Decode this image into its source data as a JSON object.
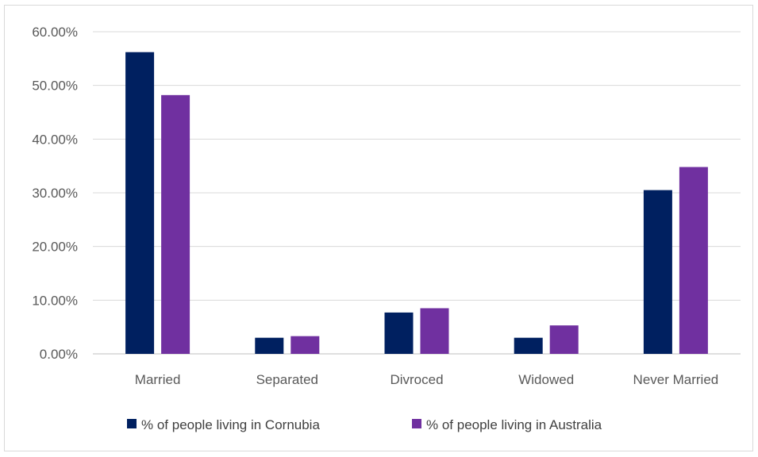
{
  "chart_data": {
    "type": "bar",
    "categories": [
      "Married",
      "Separated",
      "Divroced",
      "Widowed",
      "Never Married"
    ],
    "series": [
      {
        "name": "% of people living in Cornubia",
        "color": "#002060",
        "values": [
          56.2,
          3.0,
          7.7,
          3.0,
          30.5
        ]
      },
      {
        "name": "% of people living in Australia",
        "color": "#7030a0",
        "values": [
          48.2,
          3.3,
          8.5,
          5.3,
          34.8
        ]
      }
    ],
    "title": "",
    "xlabel": "",
    "ylabel": "",
    "ylim": [
      0,
      60
    ],
    "yticks": [
      "0.00%",
      "10.00%",
      "20.00%",
      "30.00%",
      "40.00%",
      "50.00%",
      "60.00%"
    ],
    "grid": true,
    "legend_position": "bottom"
  }
}
